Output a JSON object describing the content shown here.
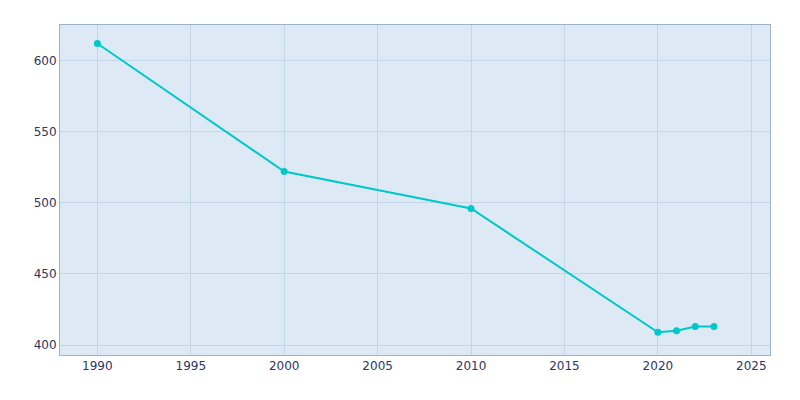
{
  "chart_data": {
    "type": "line",
    "x": [
      1990,
      2000,
      2010,
      2020,
      2021,
      2022,
      2023
    ],
    "values": [
      612,
      522,
      496,
      409,
      410,
      413,
      413
    ],
    "color": "#00C8C8",
    "marker": "circle",
    "xlim": [
      1988,
      2026
    ],
    "ylim": [
      393,
      625
    ],
    "xticks": [
      1990,
      1995,
      2000,
      2005,
      2010,
      2015,
      2020,
      2025
    ],
    "yticks": [
      400,
      450,
      500,
      550,
      600
    ],
    "grid": true
  }
}
